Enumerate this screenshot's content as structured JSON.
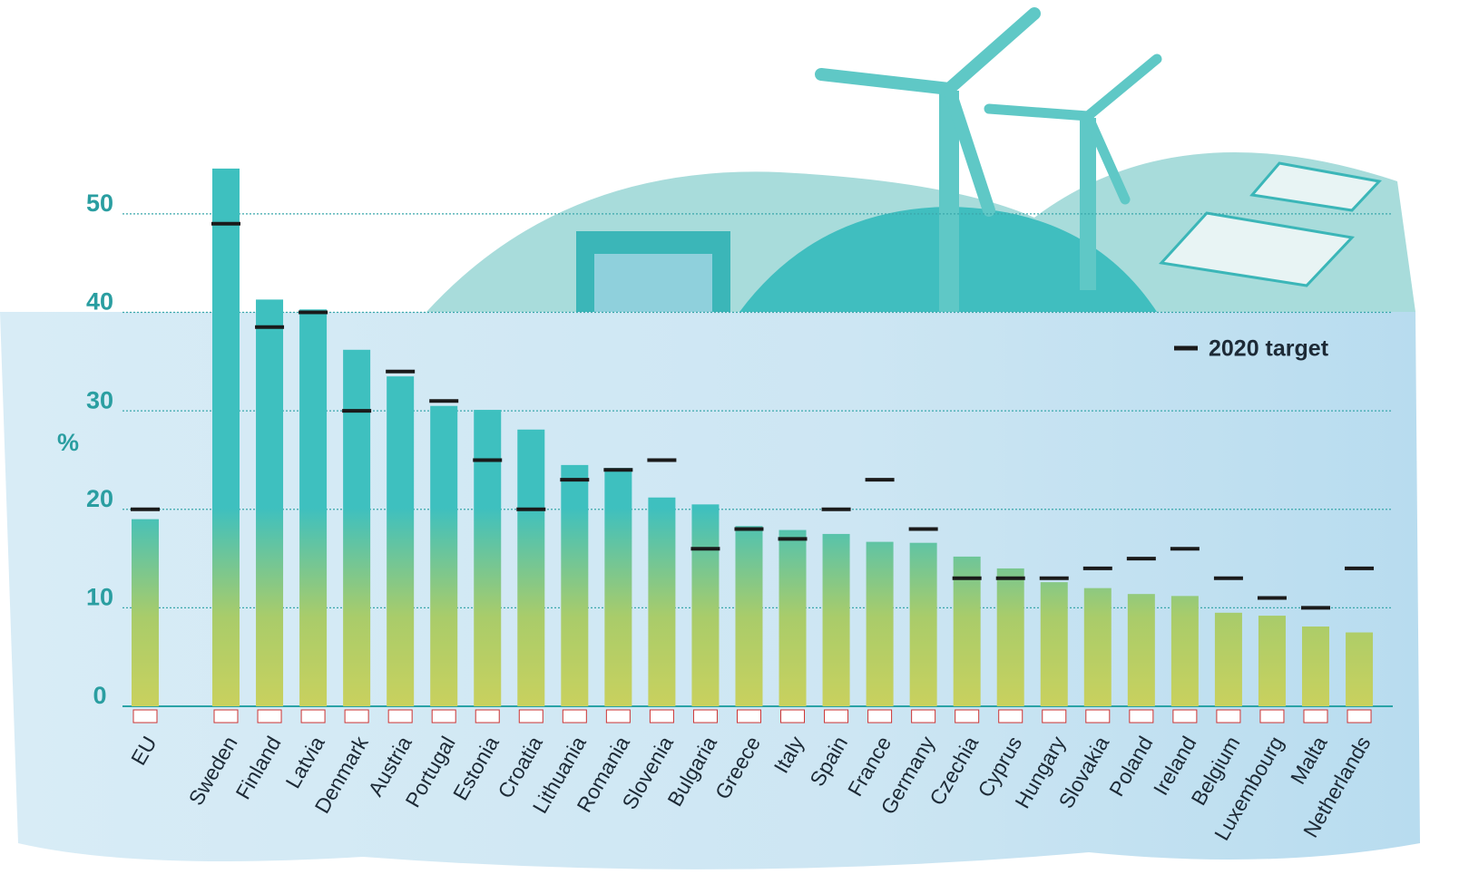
{
  "chart_data": {
    "type": "bar",
    "ylabel": "%",
    "categories": [
      "EU",
      "Sweden",
      "Finland",
      "Latvia",
      "Denmark",
      "Austria",
      "Portugal",
      "Estonia",
      "Croatia",
      "Lithuania",
      "Romania",
      "Slovenia",
      "Bulgaria",
      "Greece",
      "Italy",
      "Spain",
      "France",
      "Germany",
      "Czechia",
      "Cyprus",
      "Hungary",
      "Slovakia",
      "Poland",
      "Ireland",
      "Belgium",
      "Luxembourg",
      "Malta",
      "Netherlands"
    ],
    "values": [
      19.0,
      54.6,
      41.3,
      40.3,
      36.2,
      33.5,
      30.5,
      30.1,
      28.1,
      24.5,
      24.2,
      21.2,
      20.5,
      18.3,
      17.9,
      17.5,
      16.7,
      16.6,
      15.2,
      14.0,
      12.6,
      12.0,
      11.4,
      11.2,
      9.5,
      9.2,
      8.1,
      7.5
    ],
    "target": {
      "name": "2020 target",
      "color": "#1a1a1a",
      "values": [
        20,
        49,
        38.5,
        40,
        30,
        34,
        31,
        25,
        20,
        23,
        24,
        25,
        16,
        18,
        17,
        20,
        23,
        18,
        13,
        13,
        13,
        14,
        15,
        16,
        13,
        11,
        10,
        14
      ]
    },
    "ylim": [
      0,
      58
    ],
    "yticks": [
      0,
      10,
      20,
      30,
      40,
      50
    ],
    "grid": true
  }
}
